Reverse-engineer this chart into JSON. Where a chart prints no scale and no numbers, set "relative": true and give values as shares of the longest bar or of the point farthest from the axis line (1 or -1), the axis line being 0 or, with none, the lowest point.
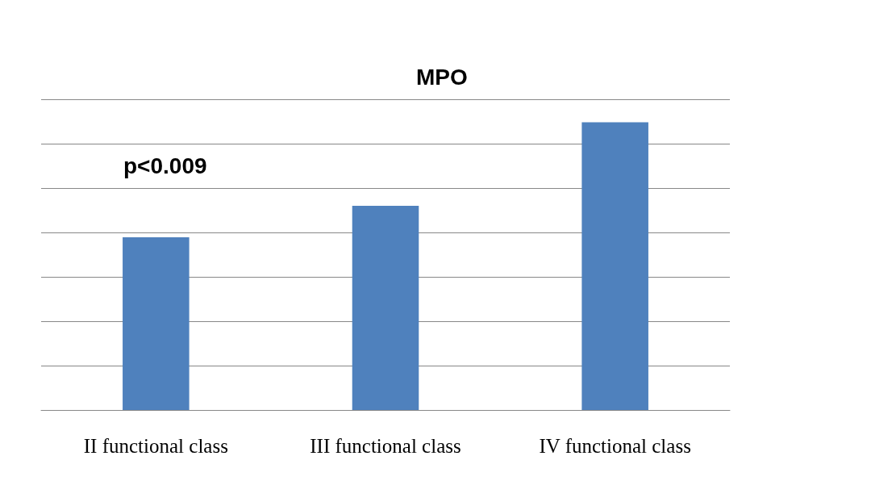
{
  "chart_data": {
    "type": "bar",
    "title": "MPO",
    "relative": true,
    "categories": [
      "II functional class",
      "III functional class",
      "IV functional class"
    ],
    "values": [
      0.6,
      0.71,
      1
    ],
    "color": "#4f81bd",
    "grid": true,
    "annotations": [
      "p<0.009"
    ]
  }
}
